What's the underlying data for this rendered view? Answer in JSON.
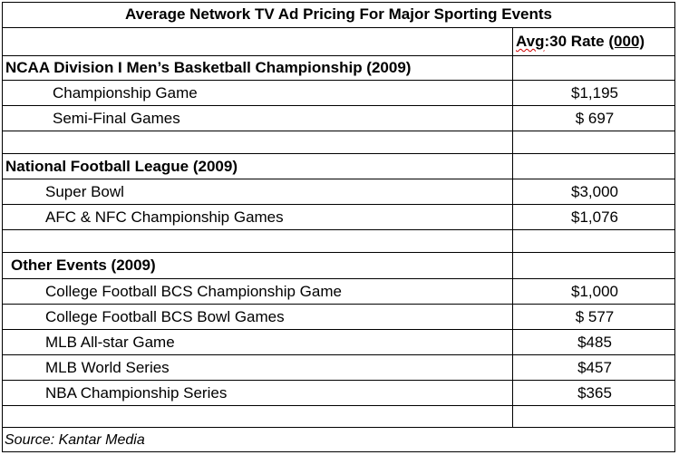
{
  "title": "Average Network TV Ad Pricing For Major Sporting Events",
  "header": {
    "rate_prefix": "Avg ",
    "rate_mid": ":30 Rate ",
    "rate_unit": "(000)"
  },
  "sections": [
    {
      "heading": "NCAA Division I Men’s Basketball Championship (2009)",
      "rows": [
        {
          "label": "Championship Game",
          "value": "$1,195"
        },
        {
          "label": "Semi-Final Games",
          "value": "$ 697"
        }
      ]
    },
    {
      "heading": "National Football League (2009)",
      "rows": [
        {
          "label": "Super Bowl",
          "value": "$3,000"
        },
        {
          "label": "AFC & NFC Championship Games",
          "value": "$1,076"
        }
      ]
    },
    {
      "heading": "Other Events (2009)",
      "rows": [
        {
          "label": "College Football BCS Championship Game",
          "value": "$1,000"
        },
        {
          "label": "College Football BCS Bowl Games",
          "value": "$ 577"
        },
        {
          "label": "MLB All-star Game",
          "value": "$485"
        },
        {
          "label": "MLB World Series",
          "value": "$457"
        },
        {
          "label": "NBA Championship Series",
          "value": "$365"
        }
      ]
    }
  ],
  "source": "Source: Kantar Media"
}
